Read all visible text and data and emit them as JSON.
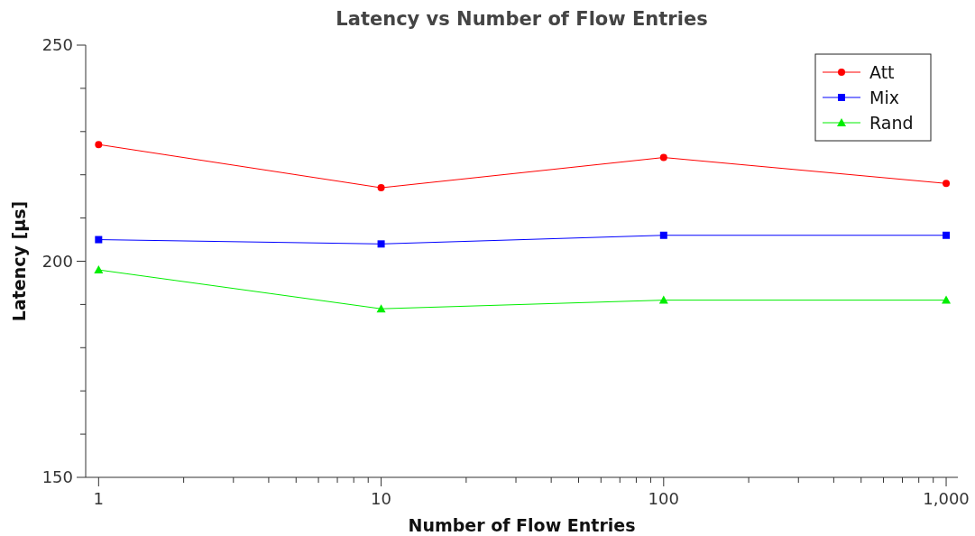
{
  "chart_data": {
    "type": "line",
    "title": "Latency vs Number of Flow Entries",
    "xlabel": "Number of Flow Entries",
    "ylabel": "Latency [µs]",
    "x": [
      1,
      10,
      100,
      1000
    ],
    "log": "x",
    "xlim": [
      0.9,
      1100
    ],
    "xticks": [
      1,
      {
        "value": 2,
        "label": null
      },
      {
        "value": 3,
        "label": null
      },
      {
        "value": 4,
        "label": null
      },
      {
        "value": 5,
        "label": null
      },
      {
        "value": 6,
        "label": null
      },
      {
        "value": 7,
        "label": null
      },
      {
        "value": 8,
        "label": null
      },
      {
        "value": 9,
        "label": null
      },
      10,
      {
        "value": 20,
        "label": null
      },
      {
        "value": 30,
        "label": null
      },
      {
        "value": 40,
        "label": null
      },
      {
        "value": 50,
        "label": null
      },
      {
        "value": 60,
        "label": null
      },
      {
        "value": 70,
        "label": null
      },
      {
        "value": 80,
        "label": null
      },
      {
        "value": 90,
        "label": null
      },
      100,
      {
        "value": 200,
        "label": null
      },
      {
        "value": 300,
        "label": null
      },
      {
        "value": 400,
        "label": null
      },
      {
        "value": 500,
        "label": null
      },
      {
        "value": 600,
        "label": null
      },
      {
        "value": 700,
        "label": null
      },
      {
        "value": 800,
        "label": null
      },
      {
        "value": 900,
        "label": null
      },
      {
        "value": 1000,
        "label": "1,000"
      }
    ],
    "ylim": [
      150,
      250
    ],
    "yticks": [
      150,
      {
        "value": 160,
        "label": null
      },
      {
        "value": 170,
        "label": null
      },
      {
        "value": 180,
        "label": null
      },
      {
        "value": 190,
        "label": null
      },
      200,
      {
        "value": 210,
        "label": null
      },
      {
        "value": 220,
        "label": null
      },
      {
        "value": 230,
        "label": null
      },
      {
        "value": 240,
        "label": null
      },
      250
    ],
    "grid": false,
    "legend": "top right",
    "line_style": "solid",
    "series": [
      {
        "name": "Att",
        "color": "#ff0000",
        "marker": "circle",
        "values": [
          227,
          217,
          224,
          218
        ]
      },
      {
        "name": "Mix",
        "color": "#0000ff",
        "marker": "square",
        "values": [
          205,
          204,
          206,
          206
        ]
      },
      {
        "name": "Rand",
        "color": "#00ee00",
        "marker": "triangle",
        "values": [
          198,
          189,
          191,
          191
        ]
      }
    ]
  }
}
